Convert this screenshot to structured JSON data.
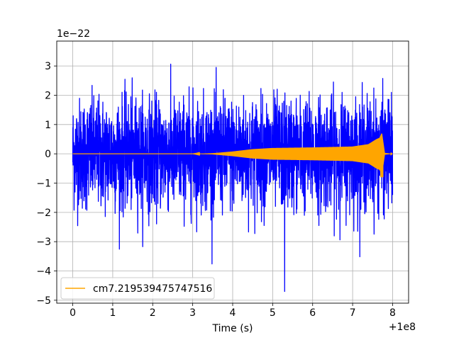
{
  "chart_data": {
    "type": "line",
    "title": "",
    "xlabel": "Time (s)",
    "ylabel": "",
    "x_offset_label": "+1e8",
    "y_scale_label": "1e−22",
    "xlim": [
      -0.4,
      8.4
    ],
    "ylim": [
      -5.1,
      3.85
    ],
    "x_ticks": [
      {
        "value": 0,
        "label": "0"
      },
      {
        "value": 1,
        "label": "1"
      },
      {
        "value": 2,
        "label": "2"
      },
      {
        "value": 3,
        "label": "3"
      },
      {
        "value": 4,
        "label": "4"
      },
      {
        "value": 5,
        "label": "5"
      },
      {
        "value": 6,
        "label": "6"
      },
      {
        "value": 7,
        "label": "7"
      },
      {
        "value": 8,
        "label": "8"
      }
    ],
    "y_ticks": [
      {
        "value": 3,
        "label": "3"
      },
      {
        "value": 2,
        "label": "2"
      },
      {
        "value": 1,
        "label": "1"
      },
      {
        "value": 0,
        "label": "0"
      },
      {
        "value": -1,
        "label": "−1"
      },
      {
        "value": -2,
        "label": "−2"
      },
      {
        "value": -3,
        "label": "−3"
      },
      {
        "value": -4,
        "label": "−4"
      },
      {
        "value": -5,
        "label": "−5"
      }
    ],
    "grid": true,
    "legend_position": "lower-left",
    "series": [
      {
        "name": "",
        "color": "#0000ff",
        "kind": "noise",
        "x_range": [
          0,
          8
        ],
        "typical_amplitude": 1.7,
        "max": 3.45,
        "min": -4.7,
        "extreme_at": 5.3
      },
      {
        "name": "cm7.219539475747516",
        "color": "#ffa500",
        "kind": "inspiral",
        "x_range": [
          0,
          8
        ],
        "envelope": [
          [
            0,
            0.0
          ],
          [
            3.0,
            0.0
          ],
          [
            3.5,
            0.02
          ],
          [
            4.0,
            0.08
          ],
          [
            4.5,
            0.16
          ],
          [
            5.0,
            0.2
          ],
          [
            6.0,
            0.22
          ],
          [
            7.0,
            0.25
          ],
          [
            7.4,
            0.33
          ],
          [
            7.6,
            0.5
          ],
          [
            7.68,
            0.55
          ],
          [
            7.73,
            0.7
          ],
          [
            7.8,
            0.03
          ],
          [
            8.0,
            0.0
          ]
        ],
        "max": 0.55,
        "min": -0.8
      }
    ]
  }
}
